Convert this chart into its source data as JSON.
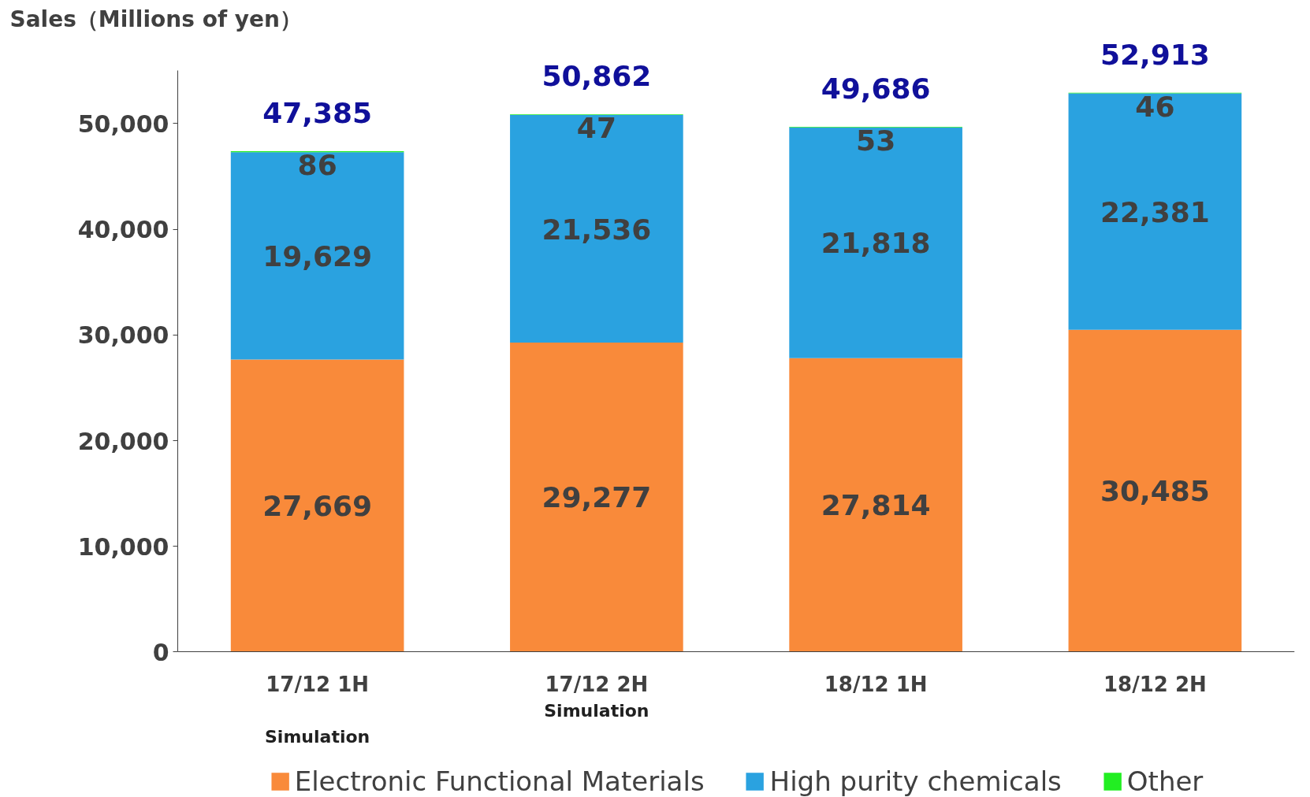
{
  "chart_data": {
    "type": "bar",
    "stacked": true,
    "ylabel": "Sales（Millions of yen）",
    "categories": [
      "17/12 1H",
      "17/12 2H",
      "18/12 1H",
      "18/12 2H"
    ],
    "series": [
      {
        "name": "Electronic Functional Materials",
        "color": "#f98a3a",
        "values": [
          27669,
          29277,
          27814,
          30485
        ],
        "value_labels": [
          "27,669",
          "29,277",
          "27,814",
          "30,485"
        ]
      },
      {
        "name": "High purity chemicals",
        "color": "#2aa2e0",
        "values": [
          19629,
          21536,
          21818,
          22381
        ],
        "value_labels": [
          "19,629",
          "21,536",
          "21,818",
          "22,381"
        ]
      },
      {
        "name": "Other",
        "color": "#22ee22",
        "values": [
          86,
          47,
          53,
          46
        ],
        "value_labels": [
          "86",
          "47",
          "53",
          "46"
        ]
      }
    ],
    "totals": [
      "47,385",
      "50,862",
      "49,686",
      "52,913"
    ],
    "ylim": [
      0,
      55000
    ],
    "yticks": [
      {
        "value": 0,
        "label": "0"
      },
      {
        "value": 10000,
        "label": "10,000"
      },
      {
        "value": 20000,
        "label": "20,000"
      },
      {
        "value": 30000,
        "label": "30,000"
      },
      {
        "value": 40000,
        "label": "40,000"
      },
      {
        "value": 50000,
        "label": "50,000"
      }
    ],
    "grid": false,
    "legend": "bottom",
    "annotations": [
      "Simulation",
      "Simulation"
    ]
  }
}
